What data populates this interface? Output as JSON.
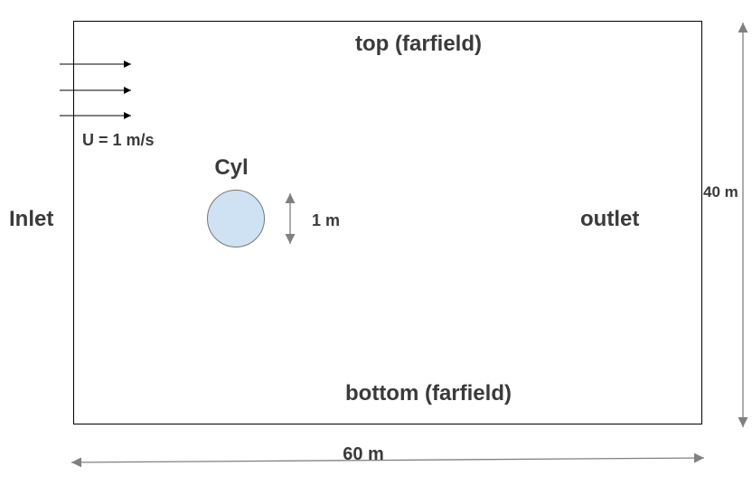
{
  "labels": {
    "top": "top (farfield)",
    "bottom": "bottom (farfield)",
    "inlet": "Inlet",
    "outlet": "outlet",
    "cylinder": "Cyl",
    "velocity": "U = 1 m/s",
    "diameter": "1 m",
    "height": "40 m",
    "width": "60 m"
  },
  "colors": {
    "text": "#3a3a3a",
    "domain_border": "#000000",
    "cylinder_fill": "#cfe2f3",
    "cylinder_stroke": "#777777",
    "flow_arrow": "#000000",
    "dimension_arrow": "#808080"
  }
}
